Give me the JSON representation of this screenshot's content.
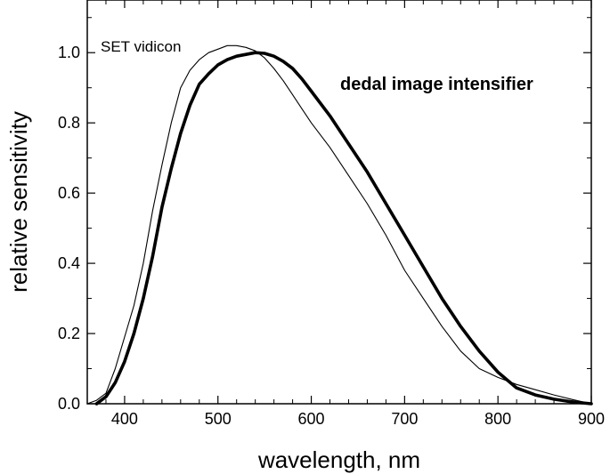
{
  "chart_data": {
    "type": "line",
    "title": "",
    "xlabel": "wavelength, nm",
    "ylabel": "relative sensitivity",
    "xlim": [
      360,
      900
    ],
    "ylim": [
      0,
      1.15
    ],
    "xticks": [
      400,
      500,
      600,
      700,
      800,
      900
    ],
    "xtick_labels": [
      "400",
      "500",
      "600",
      "700",
      "800",
      "900"
    ],
    "yticks": [
      0.0,
      0.2,
      0.4,
      0.6,
      0.8,
      1.0
    ],
    "ytick_labels": [
      "0.0",
      "0.2",
      "0.4",
      "0.6",
      "0.8",
      "1.0"
    ],
    "grid": false,
    "series": [
      {
        "name": "SET vidicon",
        "color": "#000000",
        "style": "thin",
        "x": [
          360,
          370,
          380,
          390,
          400,
          410,
          420,
          430,
          440,
          450,
          460,
          470,
          480,
          490,
          500,
          510,
          520,
          530,
          540,
          550,
          560,
          570,
          580,
          590,
          600,
          620,
          640,
          660,
          680,
          700,
          720,
          740,
          760,
          780,
          800,
          820,
          840,
          860,
          880,
          900
        ],
        "y": [
          0.0,
          0.01,
          0.03,
          0.1,
          0.19,
          0.28,
          0.4,
          0.55,
          0.68,
          0.8,
          0.9,
          0.95,
          0.98,
          1.0,
          1.01,
          1.02,
          1.02,
          1.015,
          1.005,
          0.985,
          0.955,
          0.92,
          0.88,
          0.84,
          0.8,
          0.73,
          0.65,
          0.57,
          0.48,
          0.38,
          0.3,
          0.22,
          0.15,
          0.1,
          0.075,
          0.055,
          0.04,
          0.025,
          0.012,
          0.0
        ]
      },
      {
        "name": "dedal image intensifier",
        "color": "#000000",
        "style": "thick",
        "x": [
          370,
          380,
          390,
          400,
          410,
          420,
          430,
          440,
          450,
          460,
          470,
          480,
          490,
          500,
          510,
          520,
          530,
          540,
          550,
          560,
          570,
          580,
          590,
          600,
          620,
          640,
          660,
          680,
          700,
          720,
          740,
          760,
          780,
          800,
          820,
          840,
          860,
          880,
          900
        ],
        "y": [
          0.0,
          0.02,
          0.06,
          0.12,
          0.2,
          0.3,
          0.42,
          0.56,
          0.67,
          0.77,
          0.85,
          0.91,
          0.94,
          0.965,
          0.98,
          0.99,
          0.995,
          1.0,
          0.998,
          0.99,
          0.975,
          0.955,
          0.925,
          0.89,
          0.82,
          0.74,
          0.66,
          0.57,
          0.48,
          0.39,
          0.3,
          0.22,
          0.15,
          0.09,
          0.045,
          0.025,
          0.013,
          0.005,
          0.0
        ]
      }
    ],
    "annotations": [
      {
        "text": "SET vidicon",
        "series": 0
      },
      {
        "text": "dedal image intensifier",
        "series": 1
      }
    ]
  }
}
